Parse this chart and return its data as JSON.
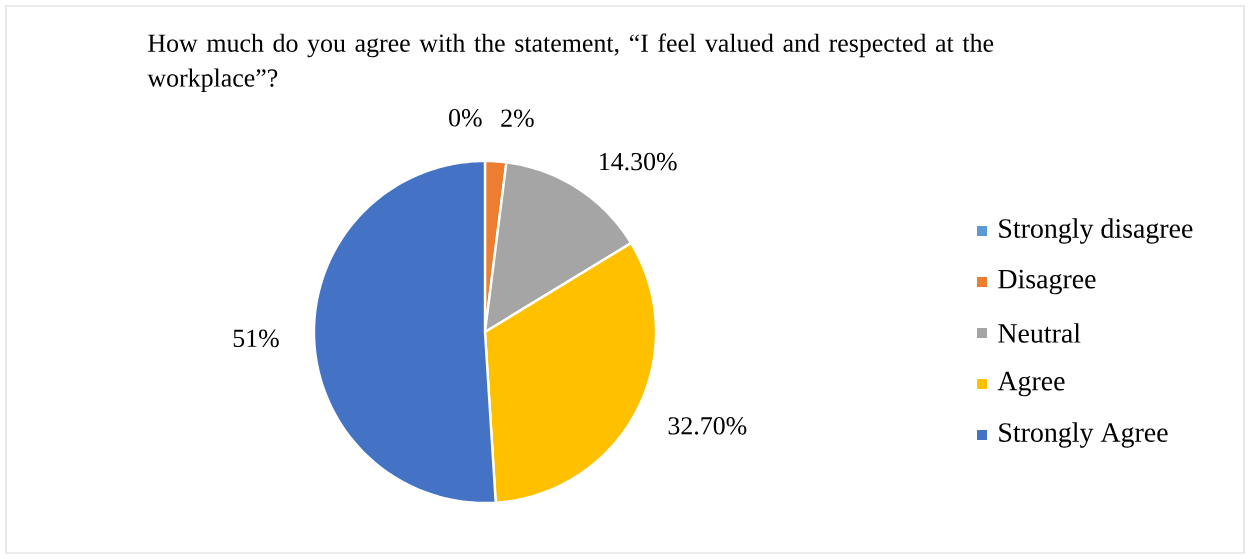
{
  "chart_data": {
    "type": "pie",
    "title": "How much do you agree with the statement, “I feel valued and respected at the workplace”?",
    "categories": [
      "Strongly disagree",
      "Disagree",
      "Neutral",
      "Agree",
      "Strongly Agree"
    ],
    "values": [
      0,
      2,
      14.3,
      32.7,
      51
    ],
    "colors": [
      "#5b9bd5",
      "#ed7d31",
      "#a5a5a5",
      "#ffc000",
      "#4472c4"
    ],
    "value_labels": [
      "0%",
      "2%",
      "14.30%",
      "32.70%",
      "51%"
    ],
    "legend": "right"
  }
}
